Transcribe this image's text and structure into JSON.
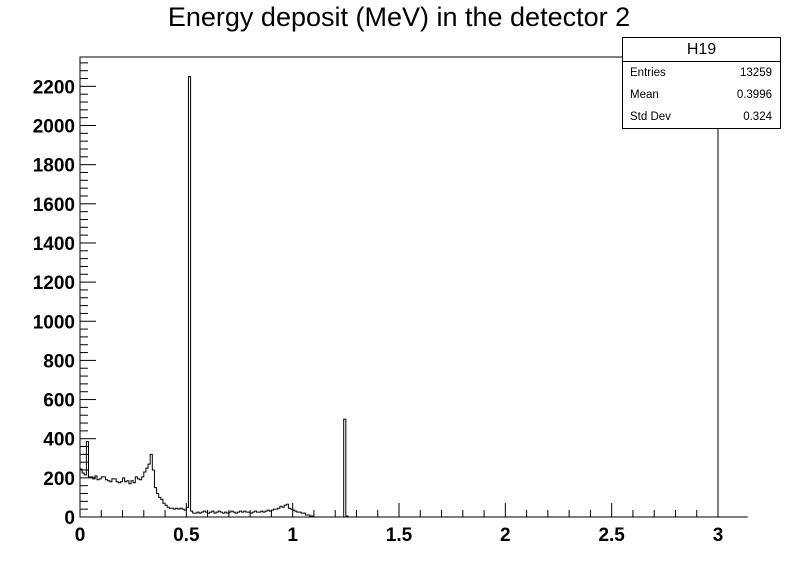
{
  "chart_data": {
    "type": "histogram",
    "title": "Energy deposit (MeV) in the detector 2",
    "xlabel": "",
    "ylabel": "",
    "xlim": [
      0,
      3
    ],
    "ylim": [
      0,
      2350
    ],
    "x_ticks": [
      "0",
      "0.5",
      "1",
      "1.5",
      "2",
      "2.5",
      "3"
    ],
    "y_ticks": [
      "0",
      "200",
      "400",
      "600",
      "800",
      "1000",
      "1200",
      "1400",
      "1600",
      "1800",
      "2000",
      "2200"
    ],
    "bin_width": 0.01,
    "counts": [
      245,
      225,
      215,
      385,
      205,
      205,
      195,
      210,
      190,
      195,
      205,
      205,
      190,
      185,
      180,
      195,
      195,
      180,
      175,
      180,
      200,
      180,
      185,
      170,
      185,
      175,
      205,
      195,
      190,
      205,
      230,
      250,
      270,
      320,
      240,
      150,
      120,
      100,
      90,
      70,
      60,
      50,
      45,
      45,
      40,
      45,
      40,
      45,
      40,
      35,
      50,
      2250,
      30,
      20,
      20,
      25,
      20,
      25,
      30,
      25,
      20,
      25,
      30,
      20,
      25,
      30,
      25,
      20,
      25,
      20,
      25,
      30,
      25,
      20,
      25,
      30,
      25,
      30,
      25,
      25,
      20,
      25,
      30,
      25,
      25,
      30,
      25,
      30,
      35,
      30,
      35,
      40,
      40,
      45,
      55,
      50,
      60,
      65,
      45,
      40,
      35,
      30,
      25,
      25,
      20,
      20,
      10,
      10,
      5,
      5,
      0,
      0,
      0,
      0,
      0,
      0,
      0,
      0,
      0,
      0,
      0,
      0,
      0,
      0,
      500,
      5,
      0,
      0,
      0,
      0,
      0,
      0,
      0,
      0,
      0,
      0,
      0,
      0,
      0,
      0,
      0,
      0,
      0,
      0,
      0,
      0,
      0,
      0,
      0,
      0,
      0,
      0,
      0,
      0,
      0,
      0,
      0,
      0,
      0,
      0,
      0,
      0,
      0,
      0,
      0,
      0,
      0,
      0,
      0,
      0,
      0,
      0,
      0,
      0,
      0,
      0,
      0,
      0,
      0,
      0,
      0,
      0,
      0,
      0,
      0,
      0,
      0,
      0,
      0,
      0,
      0,
      0,
      0,
      0,
      0,
      0,
      0,
      0,
      0,
      0,
      0,
      0,
      0,
      0,
      0,
      0,
      0,
      0,
      0,
      0,
      0,
      0,
      0,
      0,
      0,
      0,
      0,
      0,
      0,
      0,
      0,
      0,
      0,
      0,
      0,
      0,
      0,
      0,
      0,
      0,
      0,
      0,
      0,
      0,
      0,
      0,
      0,
      0,
      0,
      0,
      0,
      0,
      0,
      0,
      0,
      0,
      0,
      0,
      0,
      0,
      0,
      0,
      0,
      0,
      0,
      0,
      0,
      0,
      0,
      0,
      0,
      0,
      0,
      0,
      0,
      0,
      0,
      0,
      0,
      0,
      0,
      0,
      0,
      0,
      0,
      0,
      0,
      0,
      0,
      0,
      0,
      0,
      0,
      0,
      0,
      0,
      0,
      0,
      0,
      0,
      0,
      0,
      0,
      0,
      0,
      0,
      0,
      0,
      0,
      0,
      0,
      0,
      0,
      0,
      0,
      0,
      0,
      0,
      0,
      0,
      0,
      0,
      0,
      0
    ],
    "grid": false,
    "legend": "none",
    "line_color": "#000000",
    "stats": {
      "name": "H19",
      "rows": [
        {
          "label": "Entries",
          "value": "13259"
        },
        {
          "label": "Mean",
          "value": "0.3996"
        },
        {
          "label": "Std Dev",
          "value": "0.324"
        }
      ],
      "placement": "top-right"
    }
  }
}
